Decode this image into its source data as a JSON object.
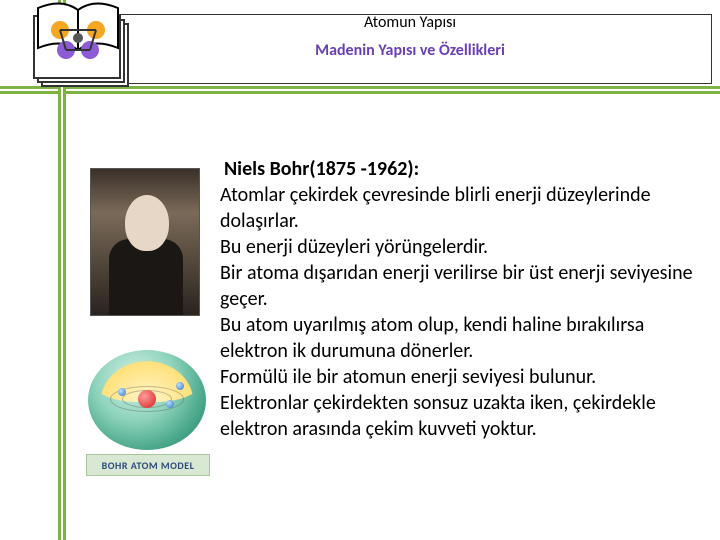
{
  "colors": {
    "accent_green": "#7cb342",
    "subtitle_purple": "#6a3fb5",
    "text_black": "#000000",
    "label_bg": "#d9e8d2",
    "label_border": "#a8c79a",
    "label_text": "#2a4a7c"
  },
  "header": {
    "top_title": "Atomun Yapısı",
    "subtitle": "Madenin Yapısı ve Özellikleri"
  },
  "content": {
    "heading": "Niels Bohr(1875 -1962):",
    "body": "Atomlar çekirdek çevresinde blirli enerji düzeylerinde dolaşırlar.\nBu enerji düzeyleri yörüngelerdir.\nBir atoma dışarıdan enerji verilirse bir üst enerji seviyesine geçer.\nBu atom uyarılmış atom olup, kendi haline bırakılırsa elektron ik durumuna dönerler.\nFormülü ile bir atomun enerji seviyesi bulunur.\nElektronlar çekirdekten sonsuz uzakta iken, çekirdekle elektron arasında çekim kuvveti yoktur."
  },
  "side": {
    "portrait_alt": "Niels Bohr",
    "model_label": "BOHR ATOM MODEL"
  },
  "logo": {
    "name": "book-atom-logo",
    "book_page": "#ffffff",
    "book_outline": "#000000",
    "orbital1": "#f5a623",
    "orbital2": "#8e5bd6",
    "frame": "#333333"
  }
}
